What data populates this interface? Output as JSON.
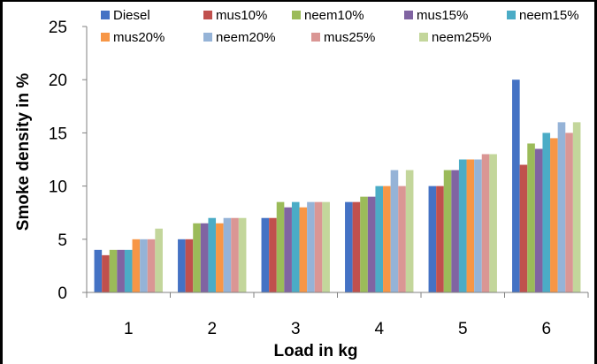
{
  "chart_data": {
    "type": "bar",
    "title": "",
    "xlabel": "Load in kg",
    "ylabel": "Smoke density in %",
    "categories": [
      "1",
      "2",
      "3",
      "4",
      "5",
      "6"
    ],
    "ylim": [
      0,
      25
    ],
    "yticks": [
      "0",
      "5",
      "10",
      "15",
      "20",
      "25"
    ],
    "grid": false,
    "legend_position": "top",
    "series": [
      {
        "name": "Diesel",
        "color": "#4472C4",
        "values": [
          4,
          5,
          7,
          8.5,
          10,
          20
        ]
      },
      {
        "name": "mus10%",
        "color": "#C0504D",
        "values": [
          3.5,
          5,
          7,
          8.5,
          10,
          12
        ]
      },
      {
        "name": "neem10%",
        "color": "#9BBB59",
        "values": [
          4,
          6.5,
          8.5,
          9,
          11.5,
          14
        ]
      },
      {
        "name": "mus15%",
        "color": "#8064A2",
        "values": [
          4,
          6.5,
          8,
          9,
          11.5,
          13.5
        ]
      },
      {
        "name": "neem15%",
        "color": "#4BACC6",
        "values": [
          4,
          7,
          8.5,
          10,
          12.5,
          15
        ]
      },
      {
        "name": "mus20%",
        "color": "#F79646",
        "values": [
          5,
          6.5,
          8,
          10,
          12.5,
          14.5
        ]
      },
      {
        "name": "neem20%",
        "color": "#95B3D7",
        "values": [
          5,
          7,
          8.5,
          11.5,
          12.5,
          16
        ]
      },
      {
        "name": "mus25%",
        "color": "#DA9694",
        "values": [
          5,
          7,
          8.5,
          10,
          13,
          15
        ]
      },
      {
        "name": "neem25%",
        "color": "#C3D69B",
        "values": [
          6,
          7,
          8.5,
          11.5,
          13,
          16
        ]
      }
    ]
  }
}
